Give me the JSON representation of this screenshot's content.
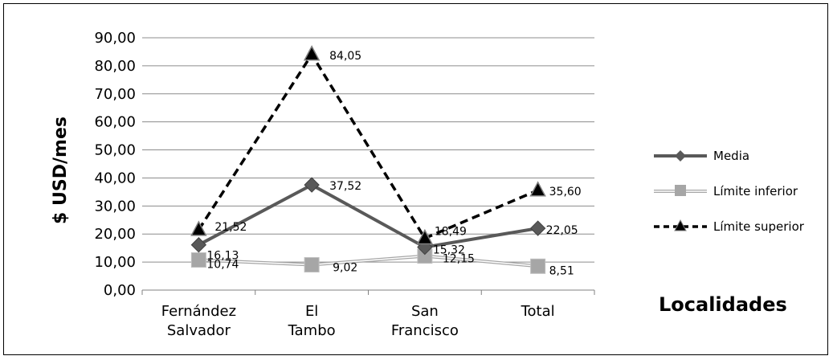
{
  "chart_data": {
    "type": "line",
    "title": "",
    "ylabel": "$ USD/mes",
    "xlabel": "Localidades",
    "ylim": [
      0,
      90
    ],
    "yticks": [
      "0,00",
      "10,00",
      "20,00",
      "30,00",
      "40,00",
      "50,00",
      "60,00",
      "70,00",
      "80,00",
      "90,00"
    ],
    "categories": [
      "Fernández Salvador",
      "El Tambo",
      "San Francisco",
      "Total"
    ],
    "grid": true,
    "legend_position": "right",
    "series": [
      {
        "name": "Media",
        "values": [
          16.13,
          37.52,
          15.32,
          22.05
        ],
        "labels": [
          "16,13",
          "37,52",
          "15,32",
          "22,05"
        ],
        "color": "#595959",
        "marker": "diamond",
        "style": "solid"
      },
      {
        "name": "Límite inferior",
        "values": [
          10.74,
          9.02,
          12.15,
          8.51
        ],
        "labels": [
          "10,74",
          "9,02",
          "12,15",
          "8,51"
        ],
        "color": "#a6a6a6",
        "marker": "square",
        "style": "double"
      },
      {
        "name": "Límite superior",
        "values": [
          21.52,
          84.05,
          18.49,
          35.6
        ],
        "labels": [
          "21,52",
          "84,05",
          "18,49",
          "35,60"
        ],
        "color": "#000000",
        "marker": "triangle",
        "style": "dashed"
      }
    ]
  }
}
